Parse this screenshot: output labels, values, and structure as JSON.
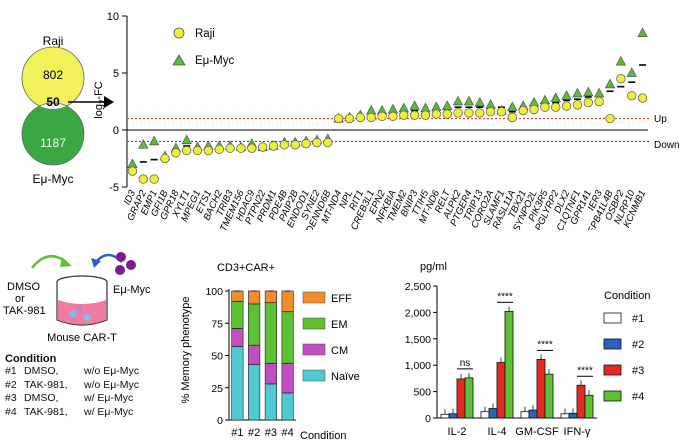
{
  "venn": {
    "left_label": "Raji",
    "left_count": "802",
    "overlap": "50",
    "right_count": "1187",
    "right_label": "Eμ-Myc"
  },
  "chart_data": [
    {
      "type": "scatter",
      "title": "",
      "ylabel": "log2FC",
      "ylabel_base": "log",
      "ylabel_sub": "2",
      "ylabel_tail": "-FC",
      "ylim": [
        -5,
        10
      ],
      "yticks": [
        -5,
        0,
        5,
        10
      ],
      "genes": [
        "ID3",
        "GRAP2",
        "EMP1",
        "GFI1B",
        "GPR18",
        "XYLT1",
        "MPEG1",
        "ETS1",
        "BACH2",
        "TRIB3",
        "TMEM156",
        "HDAC9",
        "PTPN22",
        "PRDM1",
        "PDE4B",
        "PAIP2B",
        "ENDOD1",
        "SYNE2",
        "DENND6B",
        "MT-ND4",
        "NPL",
        "RIT1",
        "CREB3L1",
        "EPN2",
        "NFKBIA",
        "TMEM2",
        "BNIP3",
        "TTIH5",
        "MT-ND6",
        "RELT",
        "ALPK2",
        "PTGER4",
        "TRIP13",
        "CORO2A",
        "SLAMF1",
        "RASL11A",
        "TBX21",
        "SYNPO2L",
        "PIK3R5",
        "PGLYRP2",
        "DLX2",
        "C1QTNF1",
        "GPR141",
        "IER3",
        "EPB41L4B",
        "OSBP2",
        "NLRP10",
        "KCNMB1"
      ],
      "series": [
        {
          "name": "Raji",
          "marker": "circle",
          "color": "#eef035",
          "values": [
            -3.6,
            -4.3,
            -4.3,
            -2.5,
            -2.0,
            -1.8,
            -1.8,
            -1.8,
            -1.7,
            -1.6,
            -1.6,
            -1.6,
            -1.5,
            -1.4,
            -1.3,
            -1.3,
            -1.2,
            -1.1,
            -1.1,
            1.0,
            1.0,
            1.1,
            1.1,
            1.2,
            1.2,
            1.3,
            1.3,
            1.3,
            1.4,
            1.4,
            1.5,
            1.5,
            1.5,
            1.6,
            1.6,
            1.1,
            1.7,
            1.8,
            2.0,
            2.0,
            2.1,
            2.2,
            2.4,
            2.5,
            1.0,
            4.5,
            3.0,
            2.8
          ]
        },
        {
          "name": "Eμ-Myc",
          "marker": "triangle",
          "color": "#5cba3c",
          "values": [
            -3.0,
            -1.3,
            -1.0,
            -2.3,
            -1.6,
            -0.9,
            -1.5,
            -1.4,
            -1.4,
            -1.4,
            -1.5,
            -1.2,
            -1.5,
            -1.4,
            -1.1,
            -1.1,
            -1.0,
            -0.9,
            -0.8,
            1.0,
            1.1,
            1.3,
            1.7,
            1.7,
            1.8,
            1.9,
            2.1,
            1.9,
            2.0,
            2.1,
            2.5,
            2.5,
            2.4,
            2.2,
            1.7,
            2.0,
            2.1,
            2.4,
            2.6,
            2.8,
            3.0,
            3.2,
            3.3,
            3.2,
            4.0,
            6.0,
            5.0,
            8.5
          ]
        }
      ],
      "means": [
        -3.3,
        -2.8,
        -2.6,
        -2.4,
        -1.8,
        -1.4,
        -1.7,
        -1.6,
        -1.6,
        -1.5,
        -1.6,
        -1.4,
        -1.5,
        -1.4,
        -1.2,
        -1.2,
        -1.1,
        -1.0,
        -1.0,
        1.0,
        1.1,
        1.2,
        1.4,
        1.5,
        1.5,
        1.6,
        1.7,
        1.6,
        1.7,
        1.8,
        2.0,
        2.0,
        2.0,
        1.9,
        2.0,
        1.6,
        1.9,
        2.1,
        2.3,
        2.4,
        2.6,
        2.7,
        2.9,
        3.1,
        3.4,
        3.8,
        4.2,
        5.7
      ],
      "up_line": 1,
      "down_line": -1,
      "up_label": "Up",
      "down_label": "Down"
    },
    {
      "type": "bar",
      "stacked": true,
      "title": "CD3+CAR+",
      "ylabel": "% Memory phenotype",
      "xlabel": "Condition",
      "categories": [
        "#1",
        "#2",
        "#3",
        "#4"
      ],
      "ylim": [
        0,
        100
      ],
      "yticks": [
        0,
        25,
        50,
        75,
        100
      ],
      "series": [
        {
          "name": "Naïve",
          "color": "#4ecad0",
          "values": [
            57,
            43,
            28,
            21
          ]
        },
        {
          "name": "CM",
          "color": "#c24fbf",
          "values": [
            14,
            15,
            16,
            23
          ]
        },
        {
          "name": "EM",
          "color": "#5cc134",
          "values": [
            21,
            32,
            47,
            40
          ]
        },
        {
          "name": "EFF",
          "color": "#f18d2f",
          "values": [
            8,
            10,
            9,
            16
          ]
        }
      ]
    },
    {
      "type": "bar",
      "title": "pg/ml",
      "ylabel": "pg/ml",
      "categories": [
        "IL-2",
        "IL-4",
        "GM-CSF",
        "IFN-γ"
      ],
      "ylim": [
        0,
        2500
      ],
      "yticks": [
        "0",
        "500",
        "1,000",
        "1,500",
        "2,000",
        "2,500"
      ],
      "legend_title": "Condition",
      "series": [
        {
          "name": "#1",
          "color": "#ffffff",
          "values": [
            70,
            120,
            120,
            80
          ]
        },
        {
          "name": "#2",
          "color": "#2f5fbf",
          "values": [
            80,
            180,
            150,
            90
          ]
        },
        {
          "name": "#3",
          "color": "#e02a22",
          "values": [
            740,
            1050,
            1110,
            620
          ]
        },
        {
          "name": "#4",
          "color": "#5cc134",
          "values": [
            760,
            2020,
            830,
            430
          ]
        }
      ],
      "annotations": [
        "ns",
        "****",
        "****",
        "****"
      ]
    }
  ],
  "schematic": {
    "dmso": "DMSO",
    "or": "or",
    "tak": "TAK-981",
    "emyc": "Eμ-Myc",
    "mouse": "Mouse CAR-T"
  },
  "conditions": {
    "title": "Condition",
    "rows": [
      {
        "id": "#1",
        "drug": "DMSO,",
        "cells": "w/o Eμ-Myc"
      },
      {
        "id": "#2",
        "drug": "TAK-981,",
        "cells": "w/o Eμ-Myc"
      },
      {
        "id": "#3",
        "drug": "DMSO,",
        "cells": "w/ Eμ-Myc"
      },
      {
        "id": "#4",
        "drug": "TAK-981,",
        "cells": "w/ Eμ-Myc"
      }
    ]
  }
}
